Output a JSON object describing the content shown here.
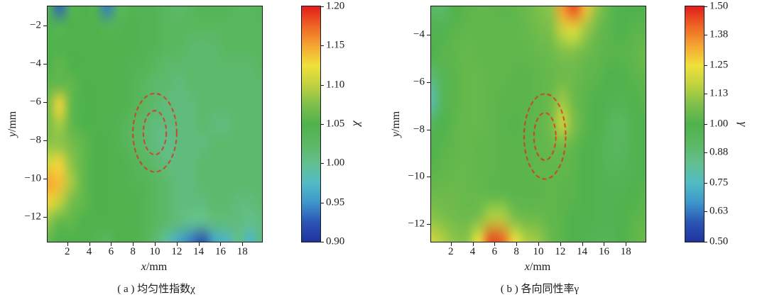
{
  "palette": {
    "stops": [
      {
        "t": 0.0,
        "color": "#2033a0"
      },
      {
        "t": 0.083,
        "color": "#2b57b5"
      },
      {
        "t": 0.167,
        "color": "#3e97cb"
      },
      {
        "t": 0.25,
        "color": "#52bcc4"
      },
      {
        "t": 0.333,
        "color": "#63bf8e"
      },
      {
        "t": 0.417,
        "color": "#5cb863"
      },
      {
        "t": 0.5,
        "color": "#4fb24c"
      },
      {
        "t": 0.583,
        "color": "#7fc04b"
      },
      {
        "t": 0.667,
        "color": "#c1d23f"
      },
      {
        "t": 0.75,
        "color": "#f0e13a"
      },
      {
        "t": 0.833,
        "color": "#f5a633"
      },
      {
        "t": 0.917,
        "color": "#ee6623"
      },
      {
        "t": 1.0,
        "color": "#e41f1d"
      }
    ]
  },
  "chart_data": [
    {
      "type": "heatmap",
      "caption": "( a ) 均匀性指数χ",
      "xlabel": {
        "variable": "x",
        "unit": "/mm"
      },
      "ylabel": {
        "variable": "y",
        "unit": "/mm"
      },
      "x_range": [
        0.2,
        19.8
      ],
      "y_range": [
        -1.0,
        -13.3
      ],
      "x_ticks": [
        2,
        4,
        6,
        8,
        10,
        12,
        14,
        16,
        18
      ],
      "y_ticks": [
        -2,
        -4,
        -6,
        -8,
        -10,
        -12
      ],
      "colorbar": {
        "label": "χ",
        "min": 0.9,
        "max": 1.2,
        "ticks": [
          1.2,
          1.15,
          1.1,
          1.05,
          1.0,
          0.95,
          0.9
        ]
      },
      "annotation_color": "#e8251f",
      "ellipses": [
        {
          "cx": 10.0,
          "cy": -7.6,
          "rx": 2.0,
          "ry": 2.05
        },
        {
          "cx": 10.0,
          "cy": -7.6,
          "rx": 1.05,
          "ry": 1.15
        }
      ],
      "values": [
        [
          1.04,
          0.93,
          1.04,
          1.05,
          1.04,
          0.94,
          1.03,
          1.04,
          1.04,
          1.04,
          1.03,
          1.02,
          1.03,
          1.04,
          1.04,
          1.04,
          1.03,
          1.03,
          1.04
        ],
        [
          1.05,
          1.04,
          1.05,
          1.05,
          1.05,
          1.04,
          1.04,
          1.05,
          1.04,
          1.04,
          1.03,
          1.03,
          1.03,
          1.03,
          1.03,
          1.03,
          1.03,
          1.03,
          1.03
        ],
        [
          1.05,
          1.05,
          1.05,
          1.05,
          1.05,
          1.05,
          1.05,
          1.05,
          1.04,
          1.04,
          1.03,
          1.03,
          1.02,
          1.02,
          1.02,
          1.03,
          1.03,
          1.03,
          1.03
        ],
        [
          1.05,
          1.06,
          1.05,
          1.05,
          1.05,
          1.05,
          1.05,
          1.04,
          1.04,
          1.03,
          1.02,
          1.02,
          1.02,
          1.02,
          1.02,
          1.02,
          1.02,
          1.02,
          1.03
        ],
        [
          1.06,
          1.06,
          1.06,
          1.05,
          1.05,
          1.05,
          1.05,
          1.04,
          1.03,
          1.02,
          1.02,
          1.01,
          1.02,
          1.02,
          1.02,
          1.02,
          1.02,
          1.02,
          1.02
        ],
        [
          1.07,
          1.13,
          1.06,
          1.05,
          1.05,
          1.05,
          1.05,
          1.04,
          1.03,
          1.02,
          1.01,
          1.01,
          1.01,
          1.02,
          1.02,
          1.02,
          1.02,
          1.02,
          1.02
        ],
        [
          1.07,
          1.09,
          1.06,
          1.05,
          1.05,
          1.05,
          1.04,
          1.03,
          1.02,
          1.01,
          1.01,
          1.01,
          1.01,
          1.02,
          1.01,
          1.01,
          1.02,
          1.02,
          1.02
        ],
        [
          1.08,
          1.08,
          1.07,
          1.06,
          1.05,
          1.05,
          1.04,
          1.03,
          1.02,
          1.01,
          1.0,
          1.01,
          1.01,
          1.01,
          1.02,
          1.02,
          1.02,
          1.02,
          1.02
        ],
        [
          1.11,
          1.13,
          1.08,
          1.06,
          1.05,
          1.05,
          1.05,
          1.04,
          1.03,
          1.02,
          1.01,
          1.01,
          1.01,
          1.02,
          1.02,
          1.02,
          1.02,
          1.02,
          1.02
        ],
        [
          1.15,
          1.14,
          1.09,
          1.06,
          1.05,
          1.05,
          1.05,
          1.04,
          1.04,
          1.03,
          1.02,
          1.01,
          1.01,
          1.02,
          1.02,
          1.02,
          1.02,
          1.02,
          1.02
        ],
        [
          1.13,
          1.1,
          1.07,
          1.06,
          1.05,
          1.05,
          1.05,
          1.05,
          1.04,
          1.03,
          1.02,
          1.01,
          1.01,
          1.01,
          1.02,
          1.02,
          1.01,
          1.01,
          1.02
        ],
        [
          1.08,
          1.06,
          1.06,
          1.05,
          1.05,
          1.05,
          1.05,
          1.05,
          1.04,
          1.03,
          1.02,
          1.01,
          1.0,
          1.0,
          1.01,
          1.01,
          1.01,
          1.0,
          1.01
        ],
        [
          1.06,
          1.05,
          1.05,
          1.05,
          1.04,
          1.03,
          1.05,
          1.05,
          1.04,
          1.02,
          0.99,
          0.96,
          0.94,
          0.92,
          0.96,
          0.97,
          1.0,
          0.97,
          1.01
        ]
      ]
    },
    {
      "type": "heatmap",
      "caption": "( b ) 各向同性率γ",
      "xlabel": {
        "variable": "x",
        "unit": "/mm"
      },
      "ylabel": {
        "variable": "y",
        "unit": "/mm"
      },
      "x_range": [
        0.2,
        19.8
      ],
      "y_range": [
        -2.8,
        -12.75
      ],
      "x_ticks": [
        2,
        4,
        6,
        8,
        10,
        12,
        14,
        16,
        18
      ],
      "y_ticks": [
        -4,
        -6,
        -8,
        -10,
        -12
      ],
      "colorbar": {
        "label": "γ",
        "min": 0.5,
        "max": 1.5,
        "ticks": [
          1.5,
          1.38,
          1.25,
          1.13,
          1.0,
          0.88,
          0.75,
          0.63,
          0.5
        ]
      },
      "annotation_color": "#e8251f",
      "ellipses": [
        {
          "cx": 10.6,
          "cy": -8.3,
          "rx": 1.9,
          "ry": 1.8
        },
        {
          "cx": 10.6,
          "cy": -8.3,
          "rx": 1.0,
          "ry": 1.0
        }
      ],
      "values": [
        [
          0.92,
          0.9,
          1.0,
          1.02,
          1.03,
          1.03,
          1.02,
          1.03,
          1.05,
          1.08,
          1.1,
          1.35,
          1.45,
          1.3,
          1.1,
          1.03,
          1.0,
          1.0,
          1.0
        ],
        [
          0.98,
          0.98,
          1.02,
          1.03,
          1.03,
          1.03,
          1.03,
          1.03,
          1.04,
          1.06,
          1.08,
          1.18,
          1.22,
          1.12,
          1.05,
          1.02,
          1.0,
          1.02,
          1.02
        ],
        [
          1.0,
          1.02,
          1.03,
          1.04,
          1.03,
          1.03,
          1.03,
          1.03,
          1.03,
          1.04,
          1.05,
          1.08,
          1.08,
          1.05,
          1.03,
          1.02,
          1.02,
          1.03,
          1.05
        ],
        [
          0.88,
          0.96,
          1.02,
          1.04,
          1.04,
          1.03,
          1.03,
          1.02,
          1.02,
          1.03,
          1.04,
          1.05,
          1.05,
          1.03,
          1.02,
          1.0,
          1.0,
          1.02,
          1.03
        ],
        [
          0.78,
          0.95,
          1.02,
          1.04,
          1.04,
          1.03,
          1.02,
          1.02,
          1.02,
          1.03,
          1.05,
          1.12,
          1.05,
          1.02,
          1.0,
          0.98,
          0.97,
          1.0,
          1.02
        ],
        [
          0.95,
          1.0,
          1.03,
          1.04,
          1.04,
          1.03,
          1.02,
          1.01,
          1.02,
          1.03,
          1.06,
          1.18,
          1.08,
          1.02,
          1.0,
          0.95,
          0.93,
          0.98,
          1.0
        ],
        [
          1.0,
          1.02,
          1.03,
          1.04,
          1.03,
          1.03,
          1.02,
          1.02,
          1.02,
          1.03,
          1.04,
          1.05,
          1.03,
          1.0,
          0.98,
          0.94,
          0.94,
          0.98,
          1.0
        ],
        [
          1.02,
          1.03,
          1.04,
          1.04,
          1.03,
          1.03,
          1.02,
          1.02,
          1.02,
          1.03,
          1.03,
          1.03,
          1.02,
          1.0,
          0.98,
          0.96,
          0.96,
          0.98,
          1.0
        ],
        [
          1.05,
          1.05,
          1.05,
          1.04,
          1.04,
          1.03,
          1.03,
          1.02,
          1.02,
          1.02,
          1.03,
          1.02,
          1.02,
          1.0,
          0.98,
          0.98,
          0.98,
          1.0,
          1.02
        ],
        [
          1.1,
          1.08,
          1.06,
          1.05,
          1.08,
          1.15,
          1.15,
          1.08,
          1.05,
          1.05,
          1.03,
          1.02,
          1.0,
          1.0,
          0.98,
          0.98,
          1.0,
          1.02,
          1.03
        ],
        [
          1.2,
          1.15,
          1.1,
          1.1,
          1.25,
          1.45,
          1.42,
          1.25,
          1.15,
          1.12,
          1.05,
          1.02,
          1.0,
          0.98,
          0.96,
          0.96,
          1.0,
          1.03,
          1.05
        ]
      ]
    }
  ]
}
